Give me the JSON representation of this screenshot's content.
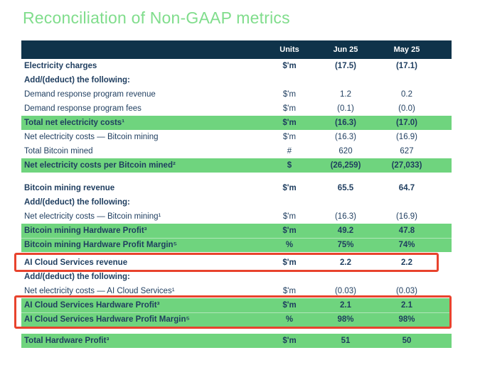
{
  "page": {
    "title": "Reconciliation of Non-GAAP metrics"
  },
  "colors": {
    "title_green": "#80dd8c",
    "highlight_green": "#6fd47e",
    "header_navy": "#0f334a",
    "text_navy": "#1e3d5f",
    "red_box": "#e8432d"
  },
  "table": {
    "header": {
      "units": "Units",
      "jun": "Jun 25",
      "may": "May 25"
    },
    "sections": [
      {
        "rows": [
          {
            "label": "Electricity charges",
            "units": "$'m",
            "jun": "(17.5)",
            "may": "(17.1)",
            "style": "bold"
          },
          {
            "label": "Add/(deduct) the following:",
            "units": "",
            "jun": "",
            "may": "",
            "style": "bold"
          },
          {
            "label": "Demand response program revenue",
            "units": "$'m",
            "jun": "1.2",
            "may": "0.2",
            "style": "regular"
          },
          {
            "label": "Demand response program fees",
            "units": "$'m",
            "jun": "(0.1)",
            "may": "(0.0)",
            "style": "regular"
          },
          {
            "label": "Total net electricity costs¹",
            "units": "$'m",
            "jun": "(16.3)",
            "may": "(17.0)",
            "style": "highlight"
          },
          {
            "label": "Net electricity costs — Bitcoin mining",
            "units": "$'m",
            "jun": "(16.3)",
            "may": "(16.9)",
            "style": "regular"
          },
          {
            "label": "Total Bitcoin mined",
            "units": "#",
            "jun": "620",
            "may": "627",
            "style": "regular"
          },
          {
            "label": "Net electricity costs per Bitcoin mined²",
            "units": "$",
            "jun": "(26,259)",
            "may": "(27,033)",
            "style": "highlight"
          }
        ]
      },
      {
        "rows": [
          {
            "label": "Bitcoin mining revenue",
            "units": "$'m",
            "jun": "65.5",
            "may": "64.7",
            "style": "bold"
          },
          {
            "label": "Add/(deduct) the following:",
            "units": "",
            "jun": "",
            "may": "",
            "style": "bold"
          },
          {
            "label": "Net electricity costs — Bitcoin mining¹",
            "units": "$'m",
            "jun": "(16.3)",
            "may": "(16.9)",
            "style": "regular"
          },
          {
            "label": "Bitcoin mining Hardware Profit³",
            "units": "$'m",
            "jun": "49.2",
            "may": "47.8",
            "style": "highlight"
          },
          {
            "label": "Bitcoin mining Hardware Profit Margin⁵",
            "units": "%",
            "jun": "75%",
            "may": "74%",
            "style": "highlight"
          }
        ]
      },
      {
        "rows": [
          {
            "label": "AI Cloud Services revenue",
            "units": "$'m",
            "jun": "2.2",
            "may": "2.2",
            "style": "bold",
            "box": "ai-revenue"
          },
          {
            "label": "Add/(deduct) the following:",
            "units": "",
            "jun": "",
            "may": "",
            "style": "bold"
          },
          {
            "label": "Net electricity costs — AI Cloud Services¹",
            "units": "$'m",
            "jun": "(0.03)",
            "may": "(0.03)",
            "style": "regular"
          },
          {
            "label": "AI Cloud Services Hardware Profit³",
            "units": "$'m",
            "jun": "2.1",
            "may": "2.1",
            "style": "highlight",
            "box": "ai-profit"
          },
          {
            "label": "AI Cloud Services Hardware Profit Margin⁵",
            "units": "%",
            "jun": "98%",
            "may": "98%",
            "style": "highlight",
            "box": "ai-profit"
          }
        ]
      },
      {
        "rows": [
          {
            "label": "Total Hardware Profit³",
            "units": "$'m",
            "jun": "51",
            "may": "50",
            "style": "highlight"
          }
        ]
      }
    ]
  }
}
